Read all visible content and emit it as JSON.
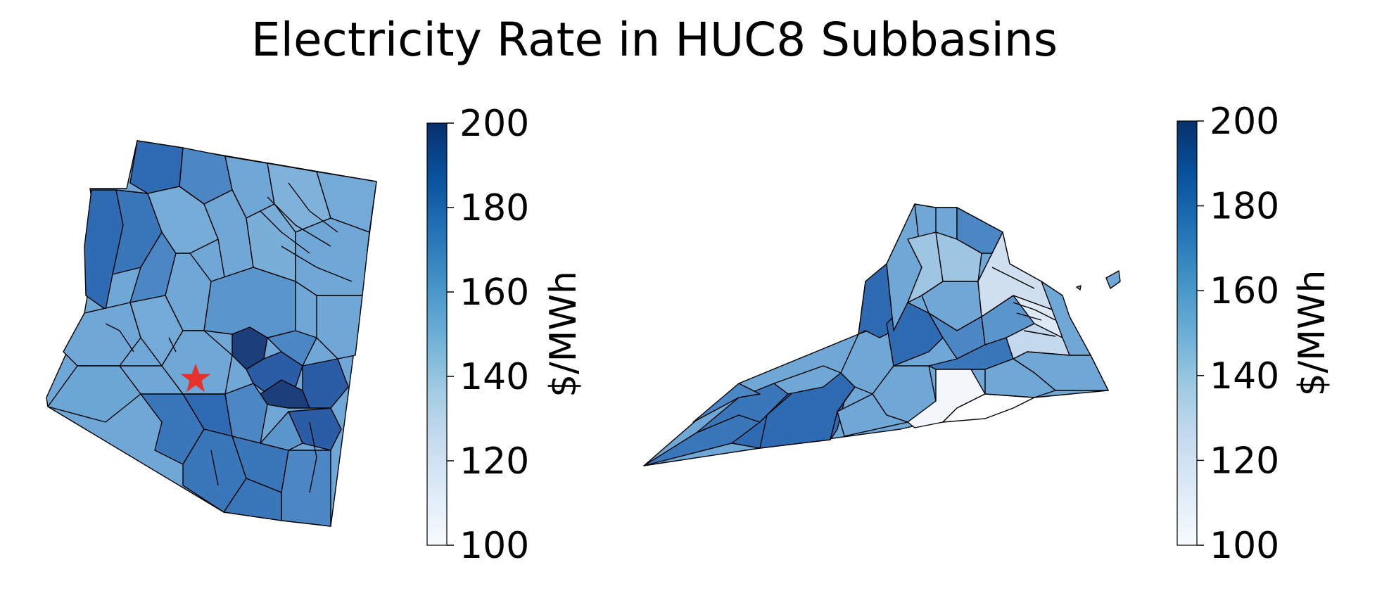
{
  "title": "Electricity Rate in HUC8 Subbasins",
  "colorscale": {
    "name": "Blues",
    "stops": [
      "#f7fbff",
      "#deebf7",
      "#c6dbef",
      "#9ecae1",
      "#6baed6",
      "#4292c6",
      "#2171b5",
      "#08519c",
      "#08306b"
    ],
    "boundary_color": "#000000",
    "marker_color": "#e8302c"
  },
  "chart_data": [
    {
      "type": "map",
      "region": "Arizona",
      "variable": "Electricity rate",
      "colorbar": {
        "label": "$/MWh",
        "min": 100,
        "max": 200,
        "ticks": [
          100,
          120,
          140,
          160,
          180,
          200
        ]
      },
      "subbasin_values_approx": {
        "majority": 150,
        "northwest": 170,
        "south": 170,
        "east_central_max": 195
      },
      "markers": [
        {
          "symbol": "star",
          "location": "central Arizona"
        }
      ]
    },
    {
      "type": "map",
      "region": "Virginia",
      "variable": "Electricity rate",
      "colorbar": {
        "label": "$/MWh",
        "min": 100,
        "max": 200,
        "ticks": [
          100,
          120,
          140,
          160,
          180,
          200
        ]
      },
      "subbasin_values_approx": {
        "southwest": 170,
        "central": 150,
        "south_central_min": 100,
        "chesapeake": 125
      }
    }
  ]
}
